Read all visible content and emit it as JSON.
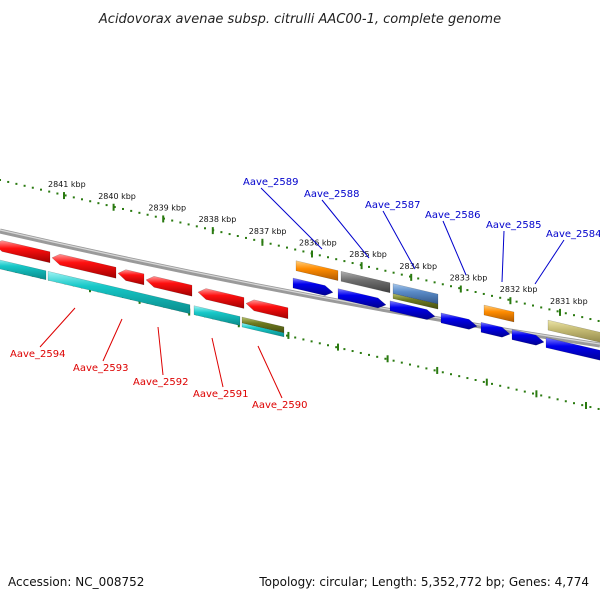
{
  "title": "Acidovorax avenae subsp. citrulli AAC00-1, complete genome",
  "footer": {
    "accession": "Accession: NC_008752",
    "topology": "Topology: circular; Length: 5,352,772 bp; Genes: 4,774"
  },
  "colors": {
    "plus_label": "#0000cc",
    "minus_label": "#dd0000",
    "tick": "#2a7a10",
    "backbone": "#808080"
  },
  "scale": {
    "unit": "kbp",
    "ticks_kbp": [
      2841,
      2840,
      2839,
      2838,
      2837,
      2836,
      2835,
      2834,
      2833,
      2832,
      2831
    ]
  },
  "plus_labels": [
    "Aave_2589",
    "Aave_2588",
    "Aave_2587",
    "Aave_2586",
    "Aave_2585",
    "Aave_2584"
  ],
  "minus_labels": [
    "Aave_2594",
    "Aave_2593",
    "Aave_2592",
    "Aave_2591",
    "Aave_2590"
  ],
  "gene_colors": [
    "red",
    "cyan",
    "blue",
    "orange",
    "gray",
    "steelblue",
    "olive",
    "khaki"
  ]
}
